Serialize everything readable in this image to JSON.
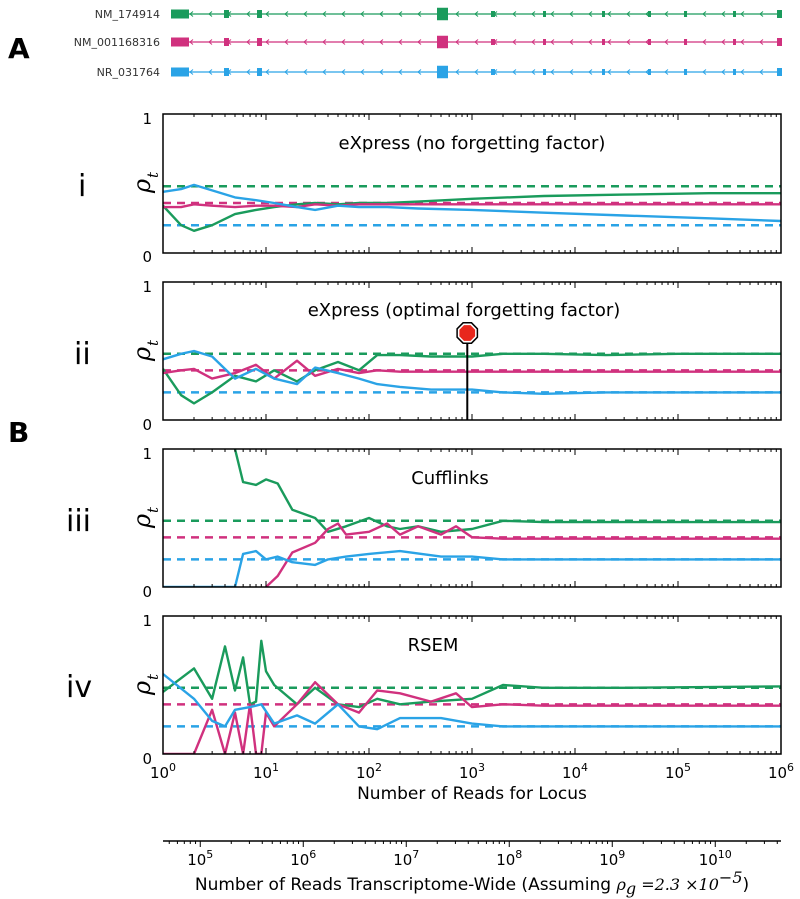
{
  "section_labels": {
    "a": "A",
    "b": "B"
  },
  "colors": {
    "green": "#1a9b5c",
    "magenta": "#d0317e",
    "blue": "#2aa3e6",
    "stop_red": "#e8271c"
  },
  "transcripts": [
    {
      "name": "NM_174914",
      "color": "#1a9b5c"
    },
    {
      "name": "NM_001168316",
      "color": "#d0317e"
    },
    {
      "name": "NR_031764",
      "color": "#2aa3e6"
    }
  ],
  "chart_data": [
    {
      "type": "line",
      "panel": "i",
      "title": "eXpress (no forgetting factor)",
      "xscale": "log",
      "xlim": [
        1,
        1000000
      ],
      "ylim": [
        0,
        1
      ],
      "ylabel": "ρ",
      "ylabel_sub": "t",
      "yticks": [
        "0",
        "1"
      ],
      "true_values": [
        0.48,
        0.36,
        0.2
      ],
      "series": [
        {
          "name": "NM_174914",
          "color": "#1a9b5c",
          "x": [
            1,
            1.5,
            2,
            3,
            5,
            8,
            12,
            20,
            30,
            50,
            80,
            150,
            300,
            1000,
            5000,
            30000,
            200000,
            1000000
          ],
          "y": [
            0.34,
            0.2,
            0.16,
            0.2,
            0.28,
            0.31,
            0.33,
            0.35,
            0.36,
            0.35,
            0.36,
            0.36,
            0.37,
            0.39,
            0.41,
            0.42,
            0.43,
            0.43
          ]
        },
        {
          "name": "NM_001168316",
          "color": "#d0317e",
          "x": [
            1,
            1.5,
            2,
            3,
            5,
            8,
            12,
            20,
            30,
            50,
            80,
            150,
            300,
            1000,
            5000,
            30000,
            200000,
            1000000
          ],
          "y": [
            0.33,
            0.33,
            0.35,
            0.34,
            0.33,
            0.34,
            0.34,
            0.33,
            0.35,
            0.34,
            0.35,
            0.35,
            0.35,
            0.35,
            0.35,
            0.35,
            0.35,
            0.35
          ]
        },
        {
          "name": "NR_031764",
          "color": "#2aa3e6",
          "x": [
            1,
            1.5,
            2,
            3,
            5,
            8,
            12,
            20,
            30,
            50,
            80,
            150,
            300,
            1000,
            5000,
            30000,
            200000,
            1000000
          ],
          "y": [
            0.44,
            0.46,
            0.49,
            0.45,
            0.4,
            0.38,
            0.36,
            0.33,
            0.31,
            0.34,
            0.33,
            0.33,
            0.32,
            0.31,
            0.29,
            0.27,
            0.25,
            0.23
          ]
        }
      ]
    },
    {
      "type": "line",
      "panel": "ii",
      "title": "eXpress (optimal forgetting factor)",
      "xscale": "log",
      "xlim": [
        1,
        1000000
      ],
      "ylim": [
        0,
        1
      ],
      "ylabel": "ρ",
      "ylabel_sub": "t",
      "yticks": [
        "0",
        "1"
      ],
      "true_values": [
        0.48,
        0.36,
        0.2
      ],
      "marker": {
        "x": 900,
        "type": "stop-sign"
      },
      "series": [
        {
          "name": "NM_174914",
          "color": "#1a9b5c",
          "x": [
            1,
            1.5,
            2,
            3,
            5,
            8,
            12,
            20,
            30,
            50,
            80,
            120,
            200,
            400,
            1000,
            2000,
            5000,
            20000,
            100000,
            1000000
          ],
          "y": [
            0.37,
            0.18,
            0.12,
            0.2,
            0.32,
            0.28,
            0.36,
            0.28,
            0.36,
            0.42,
            0.36,
            0.47,
            0.47,
            0.46,
            0.46,
            0.48,
            0.48,
            0.47,
            0.48,
            0.48
          ]
        },
        {
          "name": "NM_001168316",
          "color": "#d0317e",
          "x": [
            1,
            1.5,
            2,
            3,
            5,
            8,
            12,
            20,
            30,
            50,
            80,
            120,
            200,
            400,
            1000,
            2000,
            5000,
            20000,
            100000,
            1000000
          ],
          "y": [
            0.34,
            0.36,
            0.37,
            0.3,
            0.34,
            0.4,
            0.3,
            0.43,
            0.32,
            0.37,
            0.34,
            0.36,
            0.35,
            0.35,
            0.35,
            0.35,
            0.35,
            0.35,
            0.35,
            0.35
          ]
        },
        {
          "name": "NR_031764",
          "color": "#2aa3e6",
          "x": [
            1,
            1.5,
            2,
            3,
            5,
            8,
            12,
            20,
            30,
            50,
            80,
            120,
            200,
            400,
            1000,
            2000,
            5000,
            20000,
            100000,
            1000000
          ],
          "y": [
            0.44,
            0.48,
            0.5,
            0.46,
            0.3,
            0.37,
            0.3,
            0.26,
            0.38,
            0.34,
            0.3,
            0.26,
            0.24,
            0.22,
            0.22,
            0.2,
            0.19,
            0.2,
            0.2,
            0.2
          ]
        }
      ]
    },
    {
      "type": "line",
      "panel": "iii",
      "title": "Cufflinks",
      "xscale": "log",
      "xlim": [
        1,
        1000000
      ],
      "ylim": [
        0,
        1
      ],
      "ylabel": "ρ",
      "ylabel_sub": "t",
      "yticks": [
        "0",
        "1"
      ],
      "true_values": [
        0.48,
        0.36,
        0.2
      ],
      "series": [
        {
          "name": "NM_174914",
          "color": "#1a9b5c",
          "x": [
            5,
            6,
            8,
            10,
            13,
            18,
            30,
            40,
            60,
            100,
            150,
            200,
            300,
            500,
            1000,
            2000,
            5000,
            30000,
            1000000
          ],
          "y": [
            1,
            0.76,
            0.74,
            0.78,
            0.75,
            0.56,
            0.5,
            0.4,
            0.44,
            0.5,
            0.44,
            0.42,
            0.44,
            0.4,
            0.42,
            0.48,
            0.47,
            0.47,
            0.47
          ]
        },
        {
          "name": "NM_001168316",
          "color": "#d0317e",
          "x": [
            10,
            13,
            18,
            30,
            40,
            50,
            60,
            100,
            150,
            200,
            300,
            500,
            700,
            1000,
            2000,
            5000,
            30000,
            1000000
          ],
          "y": [
            0,
            0.08,
            0.25,
            0.32,
            0.42,
            0.46,
            0.38,
            0.4,
            0.46,
            0.38,
            0.44,
            0.38,
            0.44,
            0.36,
            0.35,
            0.35,
            0.35,
            0.35
          ]
        },
        {
          "name": "NR_031764",
          "color": "#2aa3e6",
          "x": [
            1,
            5,
            6,
            8,
            10,
            13,
            18,
            30,
            40,
            60,
            100,
            200,
            500,
            1000,
            2000,
            5000,
            30000,
            1000000
          ],
          "y": [
            0,
            0,
            0.24,
            0.26,
            0.2,
            0.22,
            0.18,
            0.16,
            0.2,
            0.22,
            0.24,
            0.26,
            0.22,
            0.22,
            0.2,
            0.2,
            0.2,
            0.2
          ]
        }
      ]
    },
    {
      "type": "line",
      "panel": "iv",
      "title": "RSEM",
      "xscale": "log",
      "xlim": [
        1,
        1000000
      ],
      "ylim": [
        0,
        1
      ],
      "ylabel": "ρ",
      "ylabel_sub": "t",
      "yticks": [
        "0",
        "1"
      ],
      "true_values": [
        0.48,
        0.36,
        0.2
      ],
      "series": [
        {
          "name": "NM_174914",
          "color": "#1a9b5c",
          "x": [
            1,
            2,
            3,
            4,
            5,
            6,
            7,
            8,
            9,
            10,
            12,
            20,
            30,
            50,
            80,
            120,
            200,
            400,
            1000,
            2000,
            5000,
            30000,
            1000000
          ],
          "y": [
            0.45,
            0.62,
            0.4,
            0.78,
            0.46,
            0.7,
            0.36,
            0.38,
            0.82,
            0.6,
            0.5,
            0.36,
            0.48,
            0.36,
            0.34,
            0.4,
            0.36,
            0.38,
            0.4,
            0.5,
            0.48,
            0.48,
            0.49
          ]
        },
        {
          "name": "NM_001168316",
          "color": "#d0317e",
          "x": [
            1,
            2,
            3,
            4,
            5,
            6,
            7,
            8,
            9,
            10,
            12,
            20,
            30,
            50,
            80,
            120,
            200,
            400,
            700,
            1000,
            2000,
            5000,
            30000,
            1000000
          ],
          "y": [
            0,
            0,
            0.32,
            0,
            0.3,
            0,
            0.36,
            0,
            0,
            0.3,
            0.2,
            0.36,
            0.52,
            0.36,
            0.3,
            0.46,
            0.44,
            0.38,
            0.44,
            0.34,
            0.36,
            0.35,
            0.35,
            0.35
          ]
        },
        {
          "name": "NR_031764",
          "color": "#2aa3e6",
          "x": [
            1,
            2,
            3,
            4,
            5,
            7,
            9,
            12,
            20,
            30,
            50,
            80,
            120,
            200,
            500,
            1000,
            2000,
            5000,
            30000,
            1000000
          ],
          "y": [
            0.58,
            0.4,
            0.24,
            0.2,
            0.32,
            0.34,
            0.36,
            0.22,
            0.28,
            0.22,
            0.36,
            0.2,
            0.18,
            0.26,
            0.26,
            0.22,
            0.2,
            0.2,
            0.2,
            0.2
          ]
        }
      ]
    }
  ],
  "x_axis_locus": {
    "label": "Number of Reads for Locus",
    "ticks": [
      {
        "base": "10",
        "exp": "0"
      },
      {
        "base": "10",
        "exp": "1"
      },
      {
        "base": "10",
        "exp": "2"
      },
      {
        "base": "10",
        "exp": "3"
      },
      {
        "base": "10",
        "exp": "4"
      },
      {
        "base": "10",
        "exp": "5"
      },
      {
        "base": "10",
        "exp": "6"
      }
    ]
  },
  "x_axis_transcriptome": {
    "label_prefix": "Number of Reads Transcriptome-Wide (Assuming ",
    "label_formula_symbol": "ρ",
    "label_formula_sub": "g",
    "label_formula_rest": " =2.3 ×10",
    "label_formula_exp": "−5",
    "label_suffix": ")",
    "ticks": [
      {
        "base": "10",
        "exp": "5"
      },
      {
        "base": "10",
        "exp": "6"
      },
      {
        "base": "10",
        "exp": "7"
      },
      {
        "base": "10",
        "exp": "8"
      },
      {
        "base": "10",
        "exp": "9"
      },
      {
        "base": "10",
        "exp": "10"
      }
    ]
  }
}
